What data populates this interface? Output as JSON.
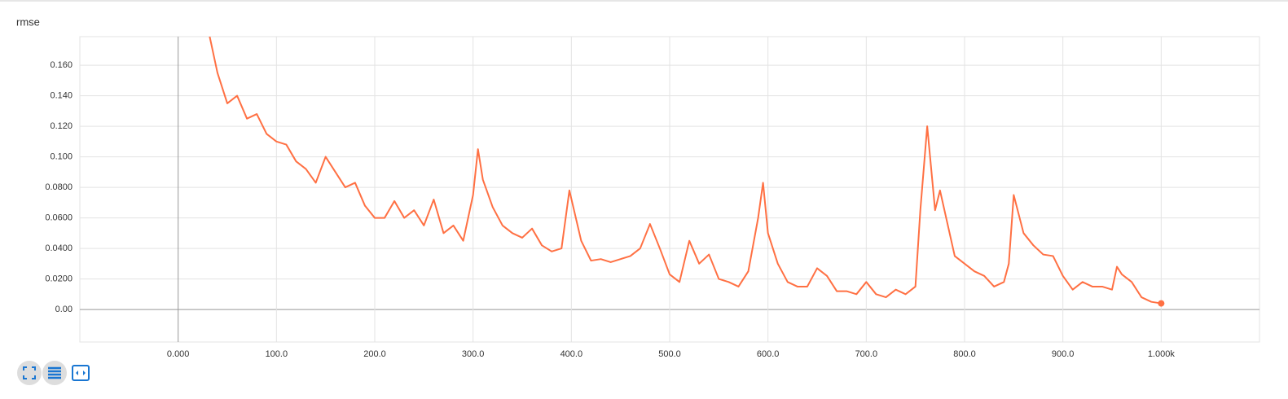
{
  "chart_data": {
    "type": "line",
    "title": "rmse",
    "x": [
      30,
      40,
      50,
      60,
      70,
      80,
      90,
      100,
      110,
      120,
      130,
      140,
      150,
      160,
      170,
      180,
      190,
      200,
      210,
      220,
      230,
      240,
      250,
      260,
      270,
      280,
      290,
      300,
      305,
      310,
      320,
      330,
      340,
      350,
      360,
      370,
      380,
      390,
      398,
      410,
      420,
      430,
      440,
      450,
      460,
      470,
      480,
      490,
      500,
      510,
      520,
      530,
      540,
      550,
      560,
      570,
      580,
      590,
      595,
      600,
      610,
      620,
      630,
      640,
      650,
      660,
      670,
      680,
      690,
      700,
      710,
      720,
      730,
      740,
      750,
      755,
      762,
      770,
      775,
      790,
      800,
      810,
      820,
      830,
      840,
      845,
      850,
      860,
      870,
      880,
      890,
      900,
      910,
      920,
      930,
      940,
      950,
      955,
      960,
      970,
      980,
      990,
      1000
    ],
    "series": [
      {
        "color": "#ff7043",
        "values": [
          0.185,
          0.155,
          0.135,
          0.14,
          0.125,
          0.128,
          0.115,
          0.11,
          0.108,
          0.097,
          0.092,
          0.083,
          0.1,
          0.09,
          0.08,
          0.083,
          0.068,
          0.06,
          0.06,
          0.071,
          0.06,
          0.065,
          0.055,
          0.072,
          0.05,
          0.055,
          0.045,
          0.075,
          0.105,
          0.085,
          0.067,
          0.055,
          0.05,
          0.047,
          0.053,
          0.042,
          0.038,
          0.04,
          0.078,
          0.045,
          0.032,
          0.033,
          0.031,
          0.033,
          0.035,
          0.04,
          0.056,
          0.04,
          0.023,
          0.018,
          0.045,
          0.03,
          0.036,
          0.02,
          0.018,
          0.015,
          0.025,
          0.06,
          0.083,
          0.05,
          0.03,
          0.018,
          0.015,
          0.015,
          0.027,
          0.022,
          0.012,
          0.012,
          0.01,
          0.018,
          0.01,
          0.008,
          0.013,
          0.01,
          0.015,
          0.065,
          0.12,
          0.065,
          0.078,
          0.035,
          0.03,
          0.025,
          0.022,
          0.015,
          0.018,
          0.03,
          0.075,
          0.05,
          0.042,
          0.036,
          0.035,
          0.022,
          0.013,
          0.018,
          0.015,
          0.015,
          0.013,
          0.028,
          0.023,
          0.018,
          0.008,
          0.005,
          0.004
        ]
      }
    ],
    "xlim": [
      -100,
      1100
    ],
    "ylim": [
      -0.0213,
      0.1787
    ],
    "xticks": [
      {
        "value": 0,
        "label": "0.000"
      },
      {
        "value": 100,
        "label": "100.0"
      },
      {
        "value": 200,
        "label": "200.0"
      },
      {
        "value": 300,
        "label": "300.0"
      },
      {
        "value": 400,
        "label": "400.0"
      },
      {
        "value": 500,
        "label": "500.0"
      },
      {
        "value": 600,
        "label": "600.0"
      },
      {
        "value": 700,
        "label": "700.0"
      },
      {
        "value": 800,
        "label": "800.0"
      },
      {
        "value": 900,
        "label": "900.0"
      },
      {
        "value": 1000,
        "label": "1.000k"
      }
    ],
    "yticks": [
      {
        "value": 0,
        "label": "0.00"
      },
      {
        "value": 0.02,
        "label": "0.0200"
      },
      {
        "value": 0.04,
        "label": "0.0400"
      },
      {
        "value": 0.06,
        "label": "0.0600"
      },
      {
        "value": 0.08,
        "label": "0.0800"
      },
      {
        "value": 0.1,
        "label": "0.100"
      },
      {
        "value": 0.12,
        "label": "0.120"
      },
      {
        "value": 0.14,
        "label": "0.140"
      },
      {
        "value": 0.16,
        "label": "0.160"
      }
    ],
    "grid": true
  }
}
